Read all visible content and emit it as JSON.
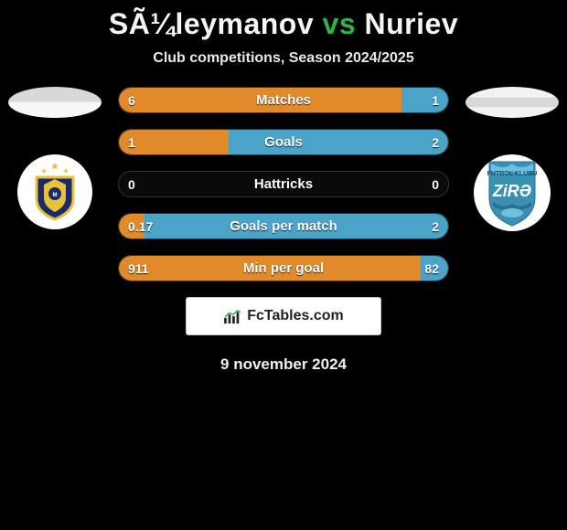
{
  "title": {
    "p1": "SÃ¼leymanov",
    "vs": "vs",
    "p2": "Nuriev"
  },
  "subtitle": "Club competitions, Season 2024/2025",
  "colors": {
    "bar_left": "#e08a2a",
    "bar_right": "#4aa3c9",
    "row_bg": "#0a0a0a",
    "row_border": "#333333",
    "title_text": "#f5f5f5",
    "vs_text": "#2db34a",
    "bg": "#000000"
  },
  "rows": [
    {
      "label": "Matches",
      "left_val": "6",
      "right_val": "1",
      "left_pct": 85.7,
      "right_pct": 14.3
    },
    {
      "label": "Goals",
      "left_val": "1",
      "right_val": "2",
      "left_pct": 33.3,
      "right_pct": 66.7
    },
    {
      "label": "Hattricks",
      "left_val": "0",
      "right_val": "0",
      "left_pct": 0,
      "right_pct": 0
    },
    {
      "label": "Goals per match",
      "left_val": "0.17",
      "right_val": "2",
      "left_pct": 7.8,
      "right_pct": 92.2
    },
    {
      "label": "Min per goal",
      "left_val": "911",
      "right_val": "82",
      "left_pct": 91.7,
      "right_pct": 8.3
    }
  ],
  "brand": "FcTables.com",
  "date": "9 november 2024",
  "crest_left": {
    "bg": "#ffffff",
    "shield_fill": "#1a2a6b",
    "shield_stroke": "#e7c23a",
    "stars": "#e7c23a"
  },
  "crest_right": {
    "bg": "#ffffff",
    "shield_fill": "#3a8fb5",
    "text": "ZiRƏ",
    "text_color": "#ffffff"
  }
}
